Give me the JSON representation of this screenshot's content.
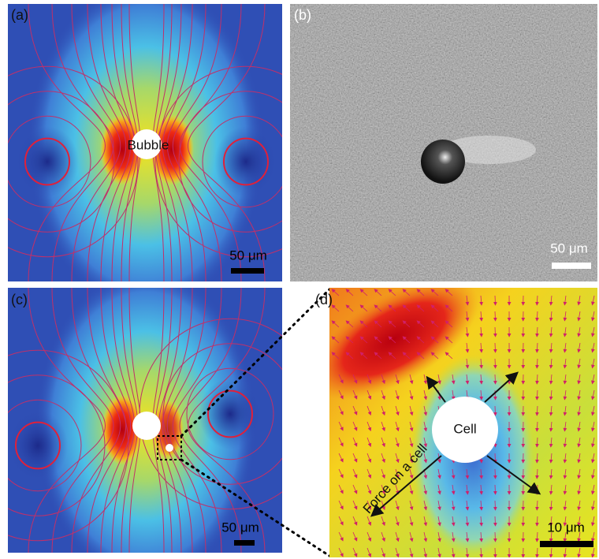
{
  "panels": [
    {
      "label": "(a)",
      "bubble_label": "Bubble",
      "scale_bar": "50 μm"
    },
    {
      "label": "(b)",
      "scale_bar": "50 μm"
    },
    {
      "label": "(c)",
      "scale_bar": "50 μm"
    },
    {
      "label": "(d)",
      "cell_label": "Cell",
      "force_label": "Force on a cell",
      "scale_bar": "10 μm"
    }
  ]
}
